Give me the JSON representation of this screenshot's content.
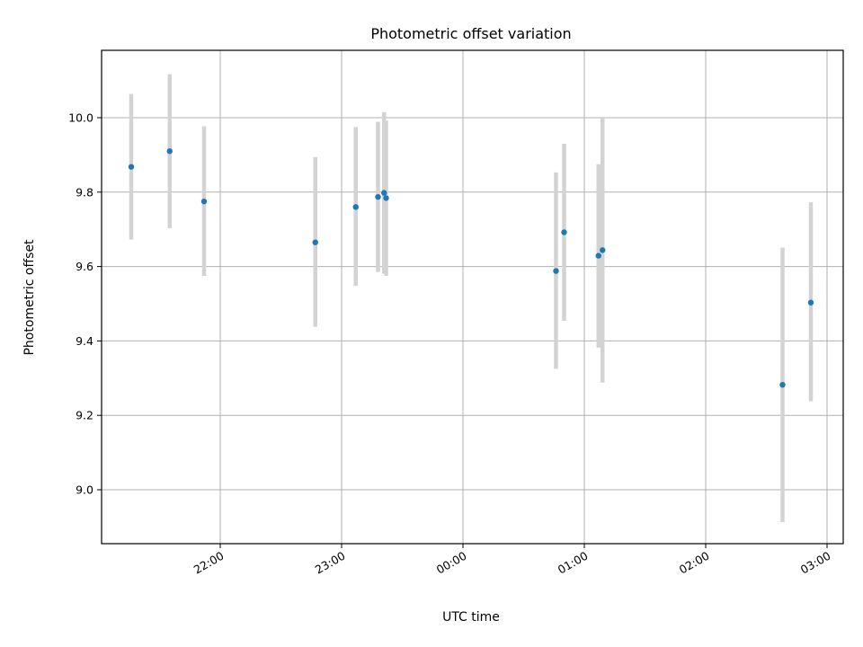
{
  "chart_data": {
    "type": "scatter",
    "title": "Photometric offset variation",
    "xlabel": "UTC time",
    "ylabel": "Photometric offset",
    "x_tick_labels": [
      "22:00",
      "23:00",
      "00:00",
      "01:00",
      "02:00",
      "03:00"
    ],
    "y_tick_labels": [
      "9.0",
      "9.2",
      "9.4",
      "9.6",
      "9.8",
      "10.0"
    ],
    "grid": true,
    "point_color": "#1f77b4",
    "errorbar_color": "#d3d3d3",
    "points": [
      {
        "x": "21:16",
        "y": 9.868,
        "y_low": 9.672,
        "y_high": 10.064
      },
      {
        "x": "21:35",
        "y": 9.91,
        "y_low": 9.703,
        "y_high": 10.117
      },
      {
        "x": "21:52",
        "y": 9.775,
        "y_low": 9.575,
        "y_high": 9.977
      },
      {
        "x": "22:47",
        "y": 9.665,
        "y_low": 9.438,
        "y_high": 9.894
      },
      {
        "x": "23:07",
        "y": 9.76,
        "y_low": 9.548,
        "y_high": 9.975
      },
      {
        "x": "23:18",
        "y": 9.787,
        "y_low": 9.585,
        "y_high": 9.989
      },
      {
        "x": "23:21",
        "y": 9.798,
        "y_low": 9.581,
        "y_high": 10.015
      },
      {
        "x": "23:22",
        "y": 9.784,
        "y_low": 9.575,
        "y_high": 9.992
      },
      {
        "x": "00:46",
        "y": 9.588,
        "y_low": 9.325,
        "y_high": 9.853
      },
      {
        "x": "00:50",
        "y": 9.692,
        "y_low": 9.454,
        "y_high": 9.93
      },
      {
        "x": "01:07",
        "y": 9.629,
        "y_low": 9.382,
        "y_high": 9.875
      },
      {
        "x": "01:09",
        "y": 9.644,
        "y_low": 9.288,
        "y_high": 10.0
      },
      {
        "x": "02:38",
        "y": 9.282,
        "y_low": 8.913,
        "y_high": 9.651
      },
      {
        "x": "02:52",
        "y": 9.503,
        "y_low": 9.238,
        "y_high": 9.773
      }
    ]
  }
}
